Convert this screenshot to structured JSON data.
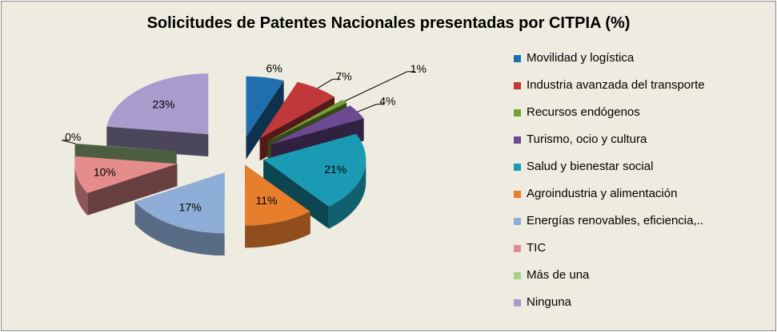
{
  "chart_data": {
    "type": "pie",
    "title": "Solicitudes de Patentes Nacionales presentadas por CITPIA (%)",
    "categories": [
      "Movilidad y logística",
      "Industria avanzada del transporte",
      "Recursos endógenos",
      "Turismo, ocio y cultura",
      "Salud y bienestar social",
      "Agroindustria y alimentación",
      "Energías renovables, eficiencia,..",
      "TIC",
      "Más de una",
      "Ninguna"
    ],
    "values": [
      6,
      7,
      1,
      4,
      21,
      11,
      17,
      10,
      0,
      23
    ],
    "data_labels": [
      "6%",
      "7%",
      "1%",
      "4%",
      "21%",
      "11%",
      "17%",
      "10%",
      "0%",
      "23%"
    ],
    "colors": [
      "#1f6fae",
      "#c0383a",
      "#76a035",
      "#6c4a91",
      "#1b9bb3",
      "#e67e2b",
      "#8eaed8",
      "#e58c8c",
      "#a9d18e",
      "#a99ccc"
    ],
    "legend_position": "right",
    "exploded": true,
    "three_d": true
  }
}
